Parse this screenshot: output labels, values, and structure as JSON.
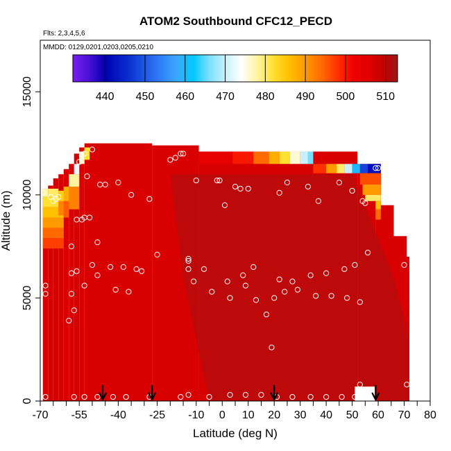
{
  "chart_data": {
    "type": "heatmap",
    "title": "ATOM2 Southbound CFC12_PECD",
    "flights_note": "Flts: 2,3,4,5,6",
    "dates_note": "MMDD: 0129,0201,0203,0205,0210",
    "xlabel": "Latitude (deg N)",
    "ylabel": "Altitude (m)",
    "xlim": [
      -70,
      80
    ],
    "ylim": [
      0,
      17500
    ],
    "x_ticks": [
      -70,
      -55,
      -40,
      -25,
      -10,
      0,
      10,
      20,
      30,
      40,
      50,
      60,
      70,
      80
    ],
    "x_tick_labels": [
      "-70",
      "-55",
      "-40",
      "-25",
      "-10",
      "0",
      "10",
      "20",
      "30",
      "40",
      "50",
      "60",
      "70",
      "80"
    ],
    "x_minor_ticks": [
      -65,
      -60,
      -50,
      -45,
      -35,
      -30,
      -20,
      -15,
      -5,
      5,
      15,
      25,
      35,
      45,
      55,
      65,
      75
    ],
    "y_ticks": [
      0,
      5000,
      10000,
      15000
    ],
    "y_tick_labels": [
      "0",
      "5000",
      "10000",
      "15000"
    ],
    "colorbar": {
      "range": [
        432,
        513
      ],
      "ticks": [
        440,
        450,
        460,
        470,
        480,
        490,
        500,
        510
      ],
      "tick_labels": [
        "440",
        "450",
        "460",
        "470",
        "480",
        "490",
        "500",
        "510"
      ],
      "stops": [
        {
          "v": 432,
          "c": "#7a1ef0"
        },
        {
          "v": 436,
          "c": "#4a10d8"
        },
        {
          "v": 440,
          "c": "#0000b0"
        },
        {
          "v": 446,
          "c": "#0a2fd0"
        },
        {
          "v": 452,
          "c": "#2a6cf0"
        },
        {
          "v": 458,
          "c": "#3aa8ff"
        },
        {
          "v": 462,
          "c": "#00c8ff"
        },
        {
          "v": 466,
          "c": "#7ae0ff"
        },
        {
          "v": 470,
          "c": "#c8f0ff"
        },
        {
          "v": 474,
          "c": "#ffffff"
        },
        {
          "v": 478,
          "c": "#fff4a0"
        },
        {
          "v": 482,
          "c": "#ffe030"
        },
        {
          "v": 486,
          "c": "#ffc000"
        },
        {
          "v": 490,
          "c": "#ff9a00"
        },
        {
          "v": 494,
          "c": "#ff6a00"
        },
        {
          "v": 498,
          "c": "#ff3000"
        },
        {
          "v": 502,
          "c": "#f00000"
        },
        {
          "v": 506,
          "c": "#e00000"
        },
        {
          "v": 510,
          "c": "#c00000"
        },
        {
          "v": 513,
          "c": "#9a1a1a"
        }
      ]
    },
    "field": {
      "background_value": 507,
      "dark_region_value": 512,
      "columns": [
        {
          "x": [
            -69,
            -67
          ],
          "top": 10300
        },
        {
          "x": [
            -67,
            -65
          ],
          "top": 10450
        },
        {
          "x": [
            -65,
            -63
          ],
          "top": 10800
        },
        {
          "x": [
            -63,
            -61
          ],
          "top": 11000
        },
        {
          "x": [
            -61,
            -59
          ],
          "top": 11250
        },
        {
          "x": [
            -59,
            -57
          ],
          "top": 11500
        },
        {
          "x": [
            -57,
            -55
          ],
          "top": 12000
        },
        {
          "x": [
            -55,
            -53
          ],
          "top": 12300
        },
        {
          "x": [
            -53,
            -27
          ],
          "top": 12500
        },
        {
          "x": [
            -27,
            -9
          ],
          "top": 12400
        },
        {
          "x": [
            -9,
            52
          ],
          "top": 12100
        },
        {
          "x": [
            52,
            59
          ],
          "top": 11500
        },
        {
          "x": [
            59,
            61
          ],
          "top": 11300
        }
      ],
      "right_edge": [
        {
          "y": [
            0,
            11500
          ],
          "x": 61
        },
        {
          "y": [
            0,
            9500
          ],
          "x": 66
        },
        {
          "y": [
            0,
            8000
          ],
          "x": 71
        },
        {
          "y": [
            0,
            7000
          ],
          "x": 72
        }
      ],
      "bottom_gap": {
        "x": [
          51,
          59
        ],
        "y": [
          0,
          700
        ]
      },
      "color_cells": [
        {
          "x": [
            -69,
            -61
          ],
          "y": [
            7400,
            7900
          ],
          "v": 497
        },
        {
          "x": [
            -69,
            -61
          ],
          "y": [
            7900,
            8400
          ],
          "v": 494
        },
        {
          "x": [
            -69,
            -61
          ],
          "y": [
            8400,
            8900
          ],
          "v": 490
        },
        {
          "x": [
            -69,
            -61
          ],
          "y": [
            8900,
            9400
          ],
          "v": 486
        },
        {
          "x": [
            -69,
            -61
          ],
          "y": [
            9400,
            9900
          ],
          "v": 482
        },
        {
          "x": [
            -69,
            -67
          ],
          "y": [
            9900,
            10300
          ],
          "v": 478
        },
        {
          "x": [
            -67,
            -63
          ],
          "y": [
            9900,
            10300
          ],
          "v": 480
        },
        {
          "x": [
            -63,
            -59
          ],
          "y": [
            9700,
            10200
          ],
          "v": 484
        },
        {
          "x": [
            -61,
            -57
          ],
          "y": [
            9700,
            10400
          ],
          "v": 488
        },
        {
          "x": [
            -59,
            -55
          ],
          "y": [
            10400,
            11000
          ],
          "v": 478
        },
        {
          "x": [
            -57,
            -55
          ],
          "y": [
            11000,
            11500
          ],
          "v": 472
        },
        {
          "x": [
            -55,
            -53
          ],
          "y": [
            11500,
            12100
          ],
          "v": 476
        },
        {
          "x": [
            -53,
            -51
          ],
          "y": [
            11700,
            12300
          ],
          "v": 482
        },
        {
          "x": [
            -63,
            -61
          ],
          "y": [
            9000,
            9700
          ],
          "v": 492
        },
        {
          "x": [
            -61,
            -59
          ],
          "y": [
            8900,
            9700
          ],
          "v": 495
        },
        {
          "x": [
            -59,
            -55
          ],
          "y": [
            9300,
            10400
          ],
          "v": 492
        },
        {
          "x": [
            -9,
            4
          ],
          "y": [
            11500,
            12100
          ],
          "v": 504
        },
        {
          "x": [
            4,
            12
          ],
          "y": [
            11500,
            12100
          ],
          "v": 500
        },
        {
          "x": [
            12,
            18
          ],
          "y": [
            11500,
            12100
          ],
          "v": 494
        },
        {
          "x": [
            18,
            22
          ],
          "y": [
            11500,
            12100
          ],
          "v": 488
        },
        {
          "x": [
            22,
            26
          ],
          "y": [
            11500,
            12100
          ],
          "v": 482
        },
        {
          "x": [
            26,
            30
          ],
          "y": [
            11500,
            12100
          ],
          "v": 476
        },
        {
          "x": [
            30,
            33
          ],
          "y": [
            11500,
            12100
          ],
          "v": 470
        },
        {
          "x": [
            33,
            35
          ],
          "y": [
            11500,
            12100
          ],
          "v": 466
        },
        {
          "x": [
            35,
            40
          ],
          "y": [
            11050,
            11500
          ],
          "v": 498
        },
        {
          "x": [
            40,
            44
          ],
          "y": [
            11050,
            11500
          ],
          "v": 490
        },
        {
          "x": [
            44,
            47
          ],
          "y": [
            11050,
            11500
          ],
          "v": 480
        },
        {
          "x": [
            47,
            50
          ],
          "y": [
            11050,
            11500
          ],
          "v": 470
        },
        {
          "x": [
            50,
            53
          ],
          "y": [
            11050,
            11500
          ],
          "v": 460
        },
        {
          "x": [
            53,
            56
          ],
          "y": [
            11050,
            11500
          ],
          "v": 448
        },
        {
          "x": [
            56,
            61
          ],
          "y": [
            11050,
            11500
          ],
          "v": 442
        },
        {
          "x": [
            53,
            61
          ],
          "y": [
            10500,
            11050
          ],
          "v": 496
        },
        {
          "x": [
            54,
            61
          ],
          "y": [
            10000,
            10500
          ],
          "v": 490
        },
        {
          "x": [
            55,
            61
          ],
          "y": [
            9700,
            10000
          ],
          "v": 480
        },
        {
          "x": [
            59,
            61
          ],
          "y": [
            9300,
            9700
          ],
          "v": 486
        },
        {
          "x": [
            59,
            61
          ],
          "y": [
            8800,
            9300
          ],
          "v": 494
        }
      ]
    },
    "points": [
      {
        "x": -69,
        "y": 10100
      },
      {
        "x": -68,
        "y": 5600
      },
      {
        "x": -68,
        "y": 5200
      },
      {
        "x": -68,
        "y": 200
      },
      {
        "x": -66,
        "y": 9900
      },
      {
        "x": -65,
        "y": 9700
      },
      {
        "x": -64,
        "y": 9800
      },
      {
        "x": -63,
        "y": 9900
      },
      {
        "x": -59,
        "y": 3900
      },
      {
        "x": -58,
        "y": 7500
      },
      {
        "x": -58,
        "y": 6200
      },
      {
        "x": -58,
        "y": 5200
      },
      {
        "x": -57,
        "y": 4400
      },
      {
        "x": -56,
        "y": 6300
      },
      {
        "x": -56,
        "y": 8800
      },
      {
        "x": -55,
        "y": 11600
      },
      {
        "x": -54,
        "y": 11900
      },
      {
        "x": -54,
        "y": 8800
      },
      {
        "x": -53,
        "y": 12000
      },
      {
        "x": -53,
        "y": 5600
      },
      {
        "x": -53,
        "y": 8900
      },
      {
        "x": -52,
        "y": 10900
      },
      {
        "x": -51,
        "y": 8900
      },
      {
        "x": -50,
        "y": 12200
      },
      {
        "x": -50,
        "y": 6600
      },
      {
        "x": -48,
        "y": 7700
      },
      {
        "x": -48,
        "y": 6100
      },
      {
        "x": -47,
        "y": 10500
      },
      {
        "x": -45,
        "y": 10500
      },
      {
        "x": -43,
        "y": 6500
      },
      {
        "x": -41,
        "y": 5400
      },
      {
        "x": -40,
        "y": 10600
      },
      {
        "x": -38,
        "y": 6500
      },
      {
        "x": -36,
        "y": 5300
      },
      {
        "x": -35,
        "y": 10000
      },
      {
        "x": -33,
        "y": 6400
      },
      {
        "x": -31,
        "y": 6300
      },
      {
        "x": -28,
        "y": 9800
      },
      {
        "x": -25,
        "y": 7100
      },
      {
        "x": -20,
        "y": 11700
      },
      {
        "x": -18,
        "y": 11800
      },
      {
        "x": -16,
        "y": 12000
      },
      {
        "x": -15,
        "y": 12000
      },
      {
        "x": -13,
        "y": 6900
      },
      {
        "x": -13,
        "y": 6800
      },
      {
        "x": -13,
        "y": 6400
      },
      {
        "x": -11,
        "y": 5800
      },
      {
        "x": -10,
        "y": 10700
      },
      {
        "x": -7,
        "y": 6400
      },
      {
        "x": -4,
        "y": 5300
      },
      {
        "x": -2,
        "y": 10700
      },
      {
        "x": -1,
        "y": 10700
      },
      {
        "x": 1,
        "y": 9500
      },
      {
        "x": 2,
        "y": 5800
      },
      {
        "x": 3,
        "y": 5000
      },
      {
        "x": 5,
        "y": 10400
      },
      {
        "x": 7,
        "y": 10300
      },
      {
        "x": 8,
        "y": 6100
      },
      {
        "x": 9,
        "y": 5600
      },
      {
        "x": 10,
        "y": 10300
      },
      {
        "x": 12,
        "y": 6500
      },
      {
        "x": 13,
        "y": 4900
      },
      {
        "x": 17,
        "y": 4200
      },
      {
        "x": 19,
        "y": 2600
      },
      {
        "x": 20,
        "y": 5000
      },
      {
        "x": 22,
        "y": 10100
      },
      {
        "x": 22,
        "y": 5900
      },
      {
        "x": 24,
        "y": 5300
      },
      {
        "x": 25,
        "y": 10600
      },
      {
        "x": 27,
        "y": 5800
      },
      {
        "x": 29,
        "y": 5400
      },
      {
        "x": 33,
        "y": 10400
      },
      {
        "x": 34,
        "y": 6100
      },
      {
        "x": 36,
        "y": 5100
      },
      {
        "x": 37,
        "y": 9700
      },
      {
        "x": 40,
        "y": 6200
      },
      {
        "x": 42,
        "y": 5100
      },
      {
        "x": 45,
        "y": 10600
      },
      {
        "x": 47,
        "y": 6400
      },
      {
        "x": 48,
        "y": 5000
      },
      {
        "x": 50,
        "y": 10200
      },
      {
        "x": 51,
        "y": 6600
      },
      {
        "x": 53,
        "y": 4800
      },
      {
        "x": 54,
        "y": 9700
      },
      {
        "x": 55,
        "y": 9600
      },
      {
        "x": 56,
        "y": 7200
      },
      {
        "x": 59,
        "y": 11300
      },
      {
        "x": 60,
        "y": 11300
      },
      {
        "x": 70,
        "y": 6600
      },
      {
        "x": 71,
        "y": 800
      },
      {
        "x": 53,
        "y": 800
      },
      {
        "x": -57,
        "y": 200
      },
      {
        "x": -53,
        "y": 200
      },
      {
        "x": -48,
        "y": 200
      },
      {
        "x": -42,
        "y": 200
      },
      {
        "x": -37,
        "y": 200
      },
      {
        "x": -28,
        "y": 200
      },
      {
        "x": -16,
        "y": 200
      },
      {
        "x": -13,
        "y": 300
      },
      {
        "x": -5,
        "y": 200
      },
      {
        "x": 3,
        "y": 300
      },
      {
        "x": 9,
        "y": 300
      },
      {
        "x": 15,
        "y": 300
      },
      {
        "x": 21,
        "y": 200
      },
      {
        "x": 27,
        "y": 200
      },
      {
        "x": 34,
        "y": 200
      },
      {
        "x": 40,
        "y": 200
      },
      {
        "x": 46,
        "y": 200
      },
      {
        "x": 51,
        "y": 200
      }
    ],
    "arrows": [
      -46,
      -27,
      20,
      59
    ]
  }
}
